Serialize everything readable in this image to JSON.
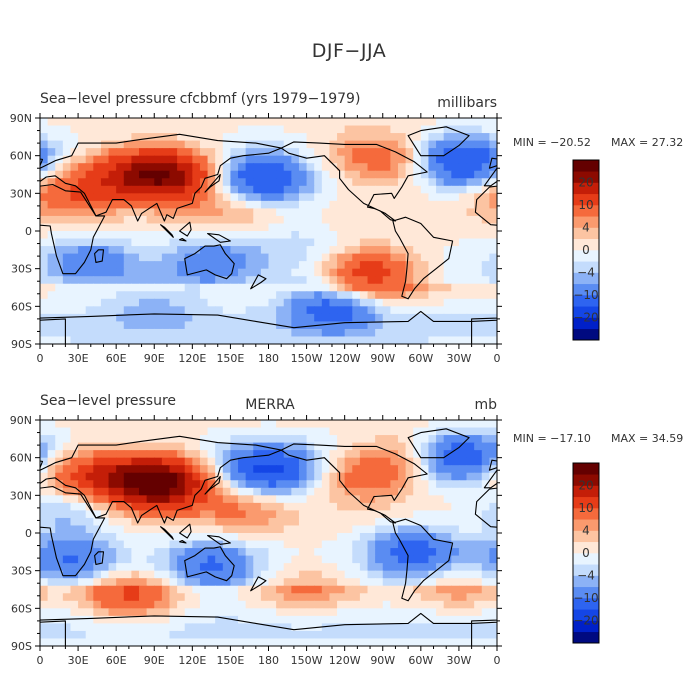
{
  "chart_data": {
    "type": "heatmap",
    "title": "DJF−JJA",
    "x_tick_labels": [
      "0",
      "30E",
      "60E",
      "90E",
      "120E",
      "150E",
      "180",
      "150W",
      "120W",
      "90W",
      "60W",
      "30W",
      "0"
    ],
    "y_tick_labels": [
      "90N",
      "60N",
      "30N",
      "0",
      "30S",
      "60S",
      "90S"
    ],
    "panels": [
      {
        "left_title": "Sea−level pressure",
        "center_title": "cfcbbmf (yrs 1979−1979)",
        "units": "millibars",
        "min_label": "MIN = −20.52",
        "max_label": "MAX =  27.32",
        "min": -20.52,
        "max": 27.32
      },
      {
        "left_title": "Sea−level pressure",
        "center_title": "MERRA",
        "units": "mb",
        "min_label": "MIN = −17.10",
        "max_label": "MAX =  34.59",
        "min": -17.1,
        "max": 34.59
      }
    ],
    "colorbar": {
      "levels": [
        -25,
        -20,
        -15,
        -10,
        -6,
        -4,
        -2,
        0,
        2,
        4,
        6,
        10,
        15,
        20,
        25
      ],
      "labels": [
        "−20",
        "−10",
        "−4",
        "0",
        "4",
        "10",
        "20"
      ],
      "colors": [
        "#000a80",
        "#0020c8",
        "#1446e6",
        "#2e64f0",
        "#5a8cf2",
        "#8cb2f6",
        "#c4dcfc",
        "#e8f4ff",
        "#ffe8d8",
        "#fcc4a2",
        "#fa9a6e",
        "#f56a3c",
        "#e63c18",
        "#c41e08",
        "#8c0a00",
        "#640000"
      ]
    },
    "features": [
      {
        "panel": 0,
        "lon": 100,
        "lat": 45,
        "value": 24
      },
      {
        "panel": 0,
        "lon": 60,
        "lat": 45,
        "value": 10
      },
      {
        "panel": 0,
        "lon": 20,
        "lat": 30,
        "value": 8
      },
      {
        "panel": 0,
        "lon": 175,
        "lat": 40,
        "value": -16
      },
      {
        "panel": 0,
        "lon": 330,
        "lat": 55,
        "value": -16
      },
      {
        "panel": 0,
        "lon": 290,
        "lat": 55,
        "value": 6
      },
      {
        "panel": 0,
        "lon": 255,
        "lat": 60,
        "value": 6
      },
      {
        "panel": 0,
        "lon": 260,
        "lat": -35,
        "value": 14
      },
      {
        "panel": 0,
        "lon": 230,
        "lat": -60,
        "value": -12
      },
      {
        "panel": 0,
        "lon": 90,
        "lat": -60,
        "value": -4
      },
      {
        "panel": 0,
        "lon": 135,
        "lat": -25,
        "value": -8
      },
      {
        "panel": 0,
        "lon": 40,
        "lat": -25,
        "value": -8
      },
      {
        "panel": 0,
        "lon": 155,
        "lat": 20,
        "value": 5
      },
      {
        "panel": 0,
        "lon": 200,
        "lat": -10,
        "value": -3
      },
      {
        "panel": 1,
        "lon": 95,
        "lat": 40,
        "value": 28
      },
      {
        "panel": 1,
        "lon": 55,
        "lat": 45,
        "value": 12
      },
      {
        "panel": 1,
        "lon": 20,
        "lat": 45,
        "value": 6
      },
      {
        "panel": 1,
        "lon": 180,
        "lat": 50,
        "value": -16
      },
      {
        "panel": 1,
        "lon": 330,
        "lat": 60,
        "value": -14
      },
      {
        "panel": 1,
        "lon": 255,
        "lat": 45,
        "value": 8
      },
      {
        "panel": 1,
        "lon": 290,
        "lat": 60,
        "value": 6
      },
      {
        "panel": 1,
        "lon": 70,
        "lat": -50,
        "value": 10
      },
      {
        "panel": 1,
        "lon": 210,
        "lat": -45,
        "value": 5
      },
      {
        "panel": 1,
        "lon": 330,
        "lat": -45,
        "value": 4
      },
      {
        "panel": 1,
        "lon": 135,
        "lat": -25,
        "value": -10
      },
      {
        "panel": 1,
        "lon": 25,
        "lat": -20,
        "value": -10
      },
      {
        "panel": 1,
        "lon": 295,
        "lat": -15,
        "value": -12
      },
      {
        "panel": 1,
        "lon": 160,
        "lat": 20,
        "value": 6
      },
      {
        "panel": 1,
        "lon": 20,
        "lat": 20,
        "value": -6
      }
    ]
  }
}
